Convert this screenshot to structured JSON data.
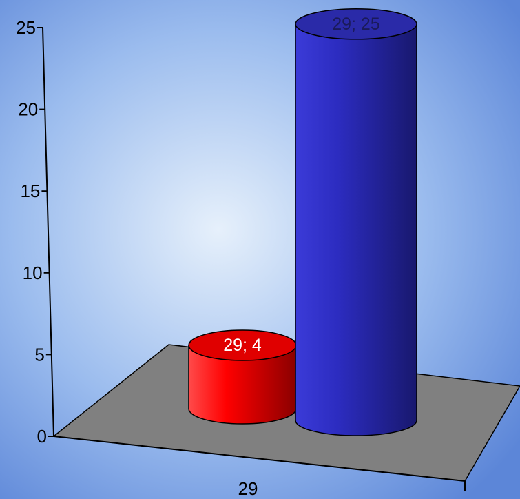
{
  "chart_data": {
    "type": "bar",
    "style": "3d-cylinder",
    "categories": [
      "29"
    ],
    "series": [
      {
        "values": [
          4
        ],
        "color": "#e00000",
        "label": "29; 4"
      },
      {
        "values": [
          25
        ],
        "color": "#2a2aa8",
        "label": "29; 25"
      }
    ],
    "ylim": [
      0,
      25
    ],
    "yticks": [
      "0",
      "5",
      "10",
      "15",
      "20",
      "25"
    ],
    "floor_color": "#808080",
    "background": [
      "#9bbcee",
      "#e6f0fb",
      "#5c86d8"
    ]
  }
}
